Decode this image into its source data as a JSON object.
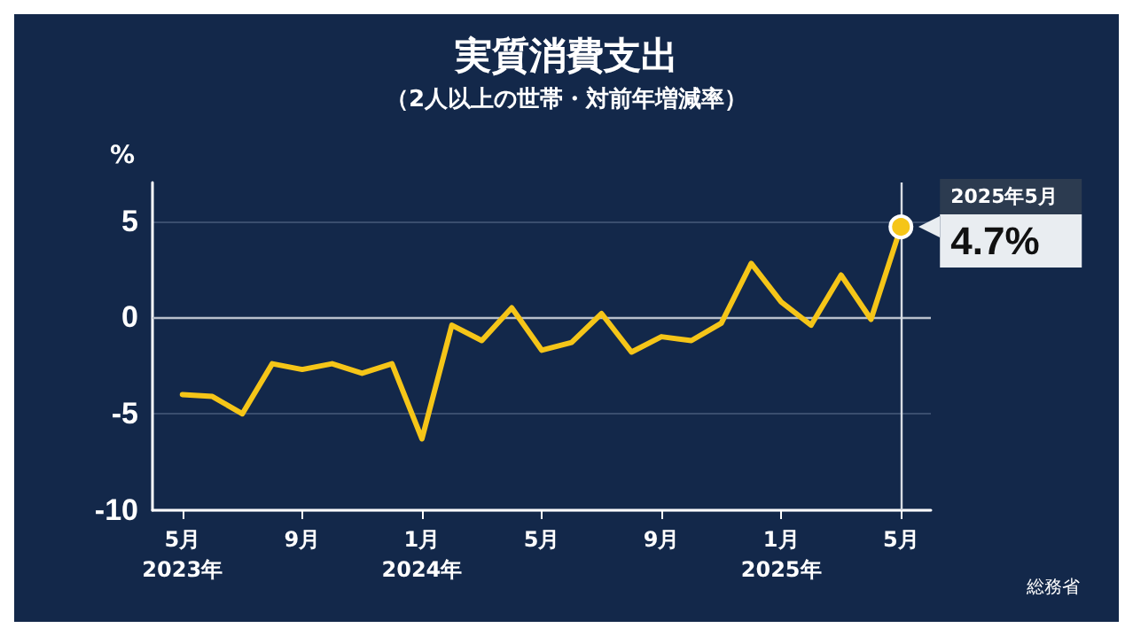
{
  "chart_data": {
    "type": "line",
    "title": "実質消費支出",
    "subtitle": "（2人以上の世帯・対前年増減率）",
    "ylabel": "%",
    "x": [
      "2023-05",
      "2023-06",
      "2023-07",
      "2023-08",
      "2023-09",
      "2023-10",
      "2023-11",
      "2023-12",
      "2024-01",
      "2024-02",
      "2024-03",
      "2024-04",
      "2024-05",
      "2024-06",
      "2024-07",
      "2024-08",
      "2024-09",
      "2024-10",
      "2024-11",
      "2024-12",
      "2025-01",
      "2025-02",
      "2025-03",
      "2025-04",
      "2025-05"
    ],
    "xlim": [
      "2023-04",
      "2025-06"
    ],
    "xticks": [
      {
        "value": "2023-05",
        "label": "5月\n2023年"
      },
      {
        "value": "2023-09",
        "label": "9月"
      },
      {
        "value": "2024-01",
        "label": "1月\n2024年"
      },
      {
        "value": "2024-05",
        "label": "5月"
      },
      {
        "value": "2024-09",
        "label": "9月"
      },
      {
        "value": "2025-01",
        "label": "1月\n2025年"
      },
      {
        "value": "2025-05",
        "label": "5月"
      }
    ],
    "series": [
      {
        "color": "#f5c518",
        "values": [
          -4.0,
          -4.1,
          -5.0,
          -2.4,
          -2.7,
          -2.4,
          -2.9,
          -2.4,
          -6.3,
          -0.4,
          -1.2,
          0.5,
          -1.7,
          -1.3,
          0.2,
          -1.8,
          -1.0,
          -1.2,
          -0.3,
          2.8,
          0.8,
          -0.4,
          2.2,
          -0.1,
          4.7
        ],
        "value_labels": [
          null,
          null,
          null,
          null,
          null,
          null,
          null,
          null,
          null,
          null,
          null,
          null,
          null,
          null,
          null,
          null,
          null,
          null,
          null,
          null,
          null,
          null,
          null,
          null,
          "4.7%"
        ]
      }
    ],
    "ylim": [
      -10,
      7
    ],
    "yticks": [
      -10,
      -5,
      0,
      5
    ],
    "grid": "y",
    "marker": "none",
    "ref_lines": [
      {
        "axis": "y",
        "value": 0,
        "color": "#b8c0cc"
      },
      {
        "axis": "x",
        "value": "2025-05",
        "color": "#d8dde4"
      }
    ],
    "annotations": [
      {
        "text": "2025年5月",
        "x": "2025-05",
        "y": 4.7
      },
      "総務省"
    ]
  }
}
